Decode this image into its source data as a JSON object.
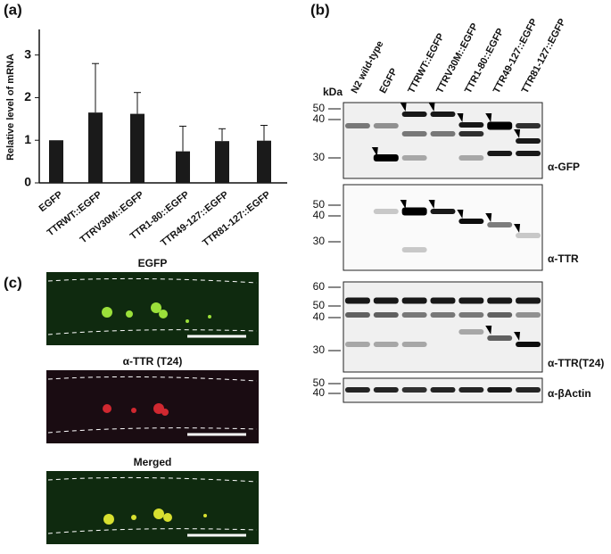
{
  "chart_data": {
    "type": "bar",
    "panel_label": "(a)",
    "ylabel": "Relative level of mRNA",
    "categories": [
      "EGFP",
      "TTRWT::EGFP",
      "TTRV30M::EGFP",
      "TTR1-80::EGFP",
      "TTR49-127::EGFP",
      "TTR81-127::EGFP"
    ],
    "values": [
      1.0,
      1.65,
      1.62,
      0.74,
      0.98,
      0.99
    ],
    "errors": [
      null,
      1.15,
      0.5,
      0.59,
      0.29,
      0.36
    ],
    "color": "#1a1a1a",
    "ylim": [
      0,
      3.6
    ],
    "yticks": [
      0,
      1,
      2,
      3
    ]
  },
  "blot_panel": {
    "label": "(b)",
    "unit": "kDa",
    "lanes": [
      "N2 wild-type",
      "EGFP",
      "TTRWT::EGFP",
      "TTRV30M::EGFP",
      "TTR1-80::EGFP",
      "TTR49-127::EGFP",
      "TTR81-127::EGFP"
    ],
    "blots": [
      {
        "markers": [
          "50",
          "40",
          "30"
        ],
        "antibody": "α-GFP"
      },
      {
        "markers": [
          "50",
          "40",
          "30"
        ],
        "antibody": "α-TTR"
      },
      {
        "markers": [
          "60",
          "50",
          "40",
          "30"
        ],
        "antibody": "α-TTR(T24)"
      },
      {
        "markers": [
          "50",
          "40"
        ],
        "antibody": "α-βActin"
      }
    ]
  },
  "image_panel": {
    "label": "(c)",
    "images": [
      {
        "title": "EGFP"
      },
      {
        "title": "α-TTR (T24)"
      },
      {
        "title": "Merged"
      }
    ]
  }
}
